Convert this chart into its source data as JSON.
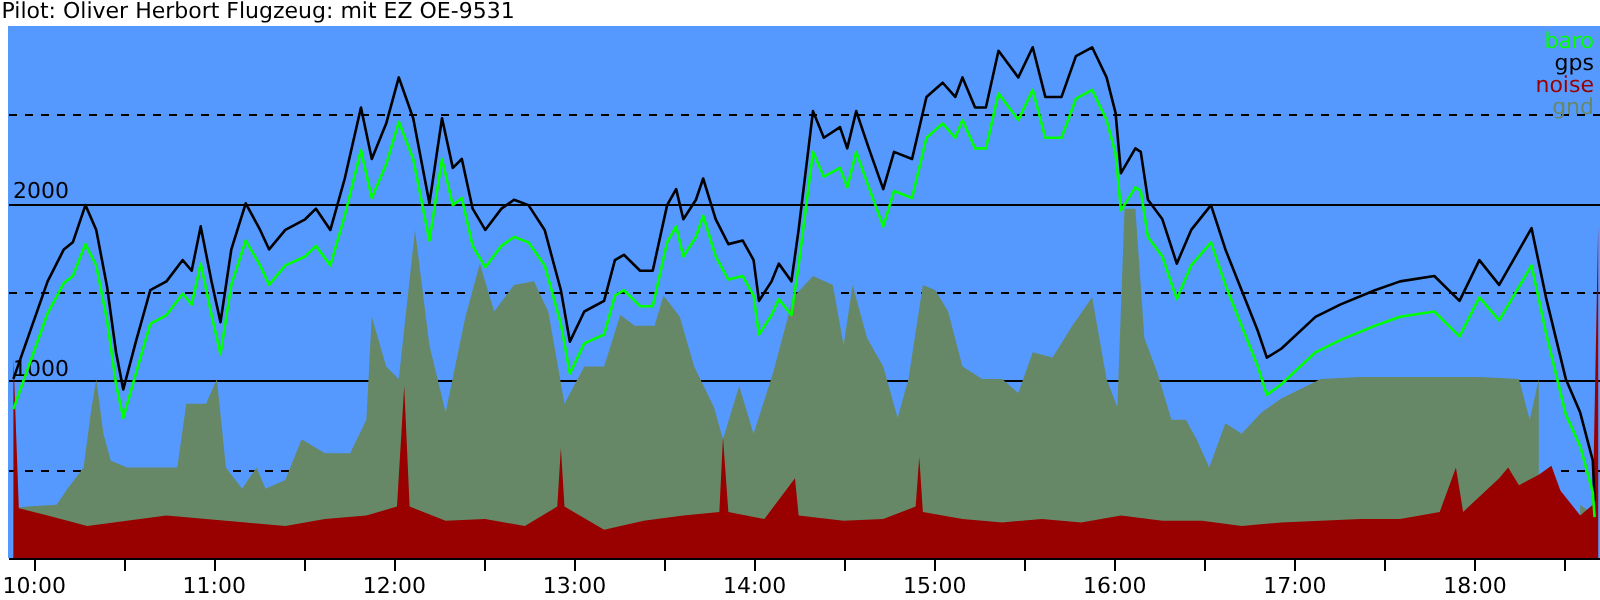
{
  "chart_data": {
    "type": "line",
    "title": "Pilot: Oliver Herbort Flugzeug: mit EZ OE-9531",
    "x": [
      9.89,
      10.08,
      10.17,
      10.22,
      10.29,
      10.35,
      10.41,
      10.46,
      10.5,
      10.57,
      10.65,
      10.74,
      10.83,
      10.88,
      10.93,
      10.99,
      11.04,
      11.1,
      11.18,
      11.26,
      11.31,
      11.4,
      11.51,
      11.57,
      11.65,
      11.73,
      11.82,
      11.88,
      11.96,
      12.03,
      12.11,
      12.2,
      12.27,
      12.33,
      12.38,
      12.44,
      12.51,
      12.6,
      12.67,
      12.75,
      12.84,
      12.93,
      12.98,
      13.06,
      13.17,
      13.23,
      13.28,
      13.37,
      13.44,
      13.52,
      13.57,
      13.61,
      13.68,
      13.72,
      13.79,
      13.86,
      13.94,
      14.0,
      14.03,
      14.1,
      14.14,
      14.21,
      14.25,
      14.33,
      14.39,
      14.48,
      14.52,
      14.57,
      14.64,
      14.72,
      14.78,
      14.88,
      14.96,
      15.05,
      15.12,
      15.16,
      15.23,
      15.29,
      15.36,
      15.47,
      15.55,
      15.62,
      15.71,
      15.79,
      15.88,
      15.96,
      16.01,
      16.04,
      16.12,
      16.15,
      16.19,
      16.27,
      16.35,
      16.43,
      16.54,
      16.62,
      16.71,
      16.8,
      16.85,
      16.93,
      17.12,
      17.26,
      17.45,
      17.59,
      17.78,
      17.92,
      18.03,
      18.14,
      18.32,
      18.4,
      18.51,
      18.59,
      18.66,
      18.67
    ],
    "series": [
      {
        "name": "baro",
        "color": "#00ff00",
        "values": [
          840,
          1380,
          1550,
          1590,
          1770,
          1650,
          1340,
          980,
          790,
          1040,
          1320,
          1370,
          1490,
          1430,
          1660,
          1370,
          1150,
          1540,
          1790,
          1650,
          1540,
          1650,
          1700,
          1760,
          1650,
          1930,
          2300,
          2030,
          2220,
          2460,
          2250,
          1790,
          2250,
          1990,
          2030,
          1760,
          1640,
          1760,
          1810,
          1780,
          1650,
          1320,
          1040,
          1210,
          1260,
          1480,
          1510,
          1420,
          1420,
          1780,
          1870,
          1700,
          1810,
          1930,
          1700,
          1570,
          1590,
          1480,
          1260,
          1370,
          1460,
          1370,
          1650,
          2290,
          2150,
          2200,
          2090,
          2290,
          2090,
          1870,
          2070,
          2030,
          2370,
          2450,
          2370,
          2470,
          2310,
          2310,
          2620,
          2470,
          2640,
          2370,
          2370,
          2590,
          2640,
          2470,
          2280,
          1960,
          2090,
          2070,
          1810,
          1700,
          1460,
          1650,
          1780,
          1540,
          1310,
          1080,
          920,
          980,
          1160,
          1230,
          1310,
          1360,
          1390,
          1250,
          1470,
          1340,
          1650,
          1270,
          810,
          630,
          370,
          230
        ]
      },
      {
        "name": "gps",
        "color": "#000000",
        "values": [
          1010,
          1560,
          1740,
          1780,
          1990,
          1850,
          1530,
          1160,
          950,
          1220,
          1510,
          1560,
          1680,
          1620,
          1870,
          1560,
          1330,
          1740,
          2000,
          1850,
          1740,
          1850,
          1910,
          1970,
          1850,
          2140,
          2540,
          2250,
          2450,
          2710,
          2480,
          2000,
          2480,
          2200,
          2250,
          1970,
          1850,
          1970,
          2020,
          1990,
          1850,
          1510,
          1220,
          1390,
          1450,
          1680,
          1710,
          1620,
          1620,
          1990,
          2080,
          1910,
          2020,
          2140,
          1910,
          1770,
          1790,
          1680,
          1450,
          1560,
          1660,
          1560,
          1850,
          2520,
          2370,
          2430,
          2310,
          2520,
          2310,
          2080,
          2290,
          2250,
          2600,
          2680,
          2600,
          2710,
          2540,
          2540,
          2860,
          2710,
          2880,
          2600,
          2600,
          2830,
          2880,
          2710,
          2510,
          2170,
          2310,
          2290,
          2020,
          1910,
          1660,
          1850,
          1990,
          1740,
          1510,
          1280,
          1130,
          1180,
          1360,
          1430,
          1510,
          1560,
          1590,
          1450,
          1680,
          1540,
          1860,
          1470,
          1010,
          820,
          550,
          320
        ]
      },
      {
        "name": "noise",
        "color": "#990000",
        "type": "area",
        "x": [
          9.89,
          9.92,
          10.08,
          10.3,
          10.52,
          10.74,
          10.96,
          11.18,
          11.4,
          11.62,
          11.85,
          12.02,
          12.06,
          12.09,
          12.29,
          12.51,
          12.73,
          12.91,
          12.93,
          12.95,
          13.17,
          13.39,
          13.61,
          13.81,
          13.83,
          13.86,
          14.06,
          14.23,
          14.25,
          14.5,
          14.72,
          14.9,
          14.92,
          14.94,
          15.16,
          15.38,
          15.6,
          15.82,
          16.04,
          16.27,
          16.49,
          16.71,
          16.93,
          17.15,
          17.37,
          17.59,
          17.81,
          17.9,
          17.94,
          18.14,
          18.19,
          18.25,
          18.36,
          18.43,
          18.48,
          18.59,
          18.66,
          18.69
        ],
        "values": [
          1130,
          280,
          240,
          180,
          210,
          240,
          220,
          200,
          180,
          220,
          240,
          290,
          970,
          290,
          210,
          220,
          180,
          290,
          620,
          290,
          160,
          210,
          240,
          260,
          680,
          260,
          220,
          450,
          240,
          210,
          220,
          290,
          570,
          260,
          220,
          200,
          220,
          200,
          240,
          210,
          210,
          180,
          200,
          210,
          220,
          220,
          260,
          510,
          260,
          450,
          510,
          410,
          470,
          520,
          380,
          240,
          300,
          1870
        ]
      },
      {
        "name": "gnd",
        "color": "#668866",
        "type": "area",
        "x": [
          9.89,
          9.97,
          10.13,
          10.19,
          10.28,
          10.32,
          10.35,
          10.39,
          10.43,
          10.52,
          10.69,
          10.8,
          10.85,
          10.96,
          11.02,
          11.07,
          11.16,
          11.24,
          11.29,
          11.4,
          11.49,
          11.62,
          11.76,
          11.85,
          11.88,
          11.96,
          12.03,
          12.12,
          12.2,
          12.29,
          12.4,
          12.48,
          12.56,
          12.67,
          12.78,
          12.86,
          12.95,
          13.06,
          13.17,
          13.26,
          13.34,
          13.45,
          13.5,
          13.59,
          13.67,
          13.78,
          13.83,
          13.92,
          14.0,
          14.11,
          14.22,
          14.33,
          14.44,
          14.5,
          14.55,
          14.63,
          14.72,
          14.8,
          14.86,
          14.94,
          15.01,
          15.08,
          15.16,
          15.27,
          15.38,
          15.47,
          15.55,
          15.66,
          15.77,
          15.88,
          15.96,
          16.02,
          16.06,
          16.12,
          16.17,
          16.24,
          16.32,
          16.4,
          16.46,
          16.53,
          16.62,
          16.71,
          16.82,
          16.93,
          17.15,
          17.37,
          17.59,
          17.81,
          18.03,
          18.25,
          18.31,
          18.36,
          18.42,
          18.59,
          18.67
        ],
        "values": [
          280,
          290,
          300,
          390,
          510,
          820,
          1010,
          700,
          550,
          510,
          510,
          510,
          870,
          870,
          1010,
          510,
          390,
          510,
          390,
          440,
          670,
          590,
          590,
          780,
          1360,
          1080,
          1010,
          1850,
          1200,
          820,
          1360,
          1660,
          1390,
          1540,
          1560,
          1390,
          870,
          1080,
          1080,
          1370,
          1310,
          1310,
          1480,
          1360,
          1080,
          850,
          670,
          970,
          700,
          1050,
          1470,
          1590,
          1540,
          1200,
          1540,
          1240,
          1080,
          790,
          1010,
          1540,
          1510,
          1390,
          1080,
          1010,
          1010,
          930,
          1160,
          1130,
          1310,
          1470,
          1010,
          850,
          1970,
          1970,
          1240,
          1050,
          780,
          780,
          670,
          510,
          760,
          700,
          820,
          900,
          1010,
          1020,
          1020,
          1020,
          1020,
          1010,
          780,
          1010,
          null,
          300,
          240
        ]
      }
    ],
    "xlim": [
      9.86,
      18.7
    ],
    "xticks": [
      {
        "value": 10,
        "label": "10:00"
      },
      {
        "value": 10.5,
        "label": null
      },
      {
        "value": 11,
        "label": "11:00"
      },
      {
        "value": 11.5,
        "label": null
      },
      {
        "value": 12,
        "label": "12:00"
      },
      {
        "value": 12.5,
        "label": null
      },
      {
        "value": 13,
        "label": "13:00"
      },
      {
        "value": 13.5,
        "label": null
      },
      {
        "value": 14,
        "label": "14:00"
      },
      {
        "value": 14.5,
        "label": null
      },
      {
        "value": 15,
        "label": "15:00"
      },
      {
        "value": 15.5,
        "label": null
      },
      {
        "value": 16,
        "label": "16:00"
      },
      {
        "value": 16.5,
        "label": null
      },
      {
        "value": 17,
        "label": "17:00"
      },
      {
        "value": 17.5,
        "label": null
      },
      {
        "value": 18,
        "label": "18:00"
      },
      {
        "value": 18.5,
        "label": null
      }
    ],
    "ylim": [
      0,
      3000
    ],
    "yticks": [
      {
        "value": 500,
        "label": null
      },
      1000,
      {
        "value": 1500,
        "label": null
      },
      2000,
      {
        "value": 2500,
        "label": null
      }
    ],
    "grid": "y",
    "legend": "top right"
  }
}
